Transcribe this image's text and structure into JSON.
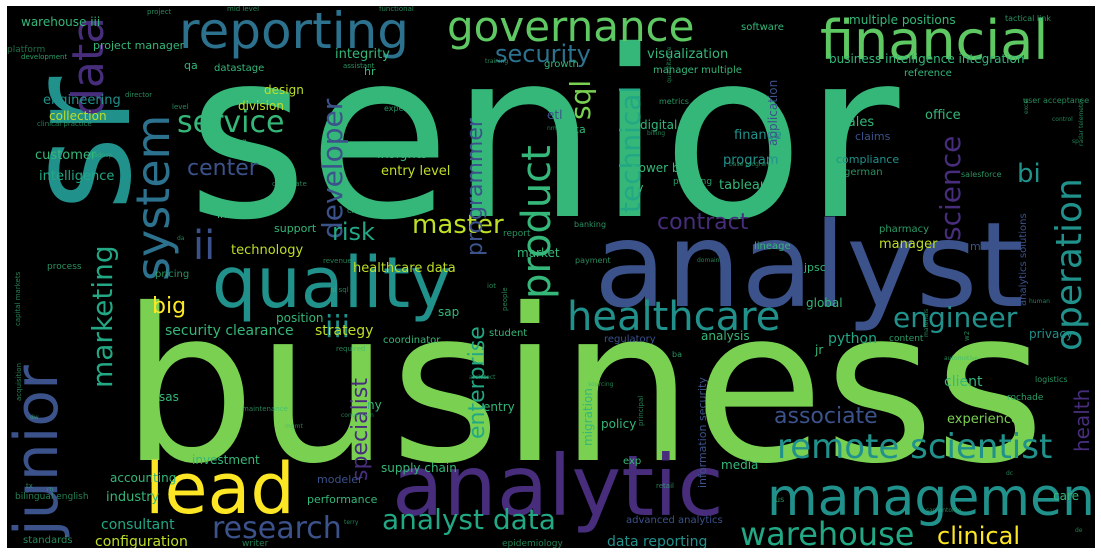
{
  "cloud": {
    "background": "#000000",
    "palette": {
      "green": "#7ad151",
      "green2": "#5ec962",
      "teal": "#35b779",
      "cyan": "#21918c",
      "blue": "#2c728e",
      "indigo": "#3b528b",
      "purple": "#472d7b",
      "violet": "#440154",
      "yellow": "#fde725",
      "lime": "#bddf26",
      "mint": "#22a884"
    },
    "words": [
      {
        "text": "senior",
        "color": "teal"
      },
      {
        "text": "business",
        "color": "green"
      },
      {
        "text": "analyst",
        "color": "indigo"
      },
      {
        "text": "sr",
        "color": "cyan"
      },
      {
        "text": "analytic",
        "color": "purple"
      },
      {
        "text": "quality",
        "color": "cyan"
      },
      {
        "text": "management",
        "color": "cyan"
      },
      {
        "text": "junior",
        "color": "indigo"
      },
      {
        "text": "lead",
        "color": "yellow"
      },
      {
        "text": "financial",
        "color": "green2"
      },
      {
        "text": "reporting",
        "color": "blue"
      },
      {
        "text": "governance",
        "color": "green2"
      },
      {
        "text": "data",
        "color": "purple"
      },
      {
        "text": "system",
        "color": "blue"
      },
      {
        "text": "product",
        "color": "teal"
      },
      {
        "text": "healthcare",
        "color": "cyan"
      },
      {
        "text": "operation",
        "color": "cyan"
      },
      {
        "text": "remote scientist",
        "color": "cyan"
      },
      {
        "text": "warehouse",
        "color": "mint"
      },
      {
        "text": "research",
        "color": "indigo"
      },
      {
        "text": "analyst data",
        "color": "mint"
      },
      {
        "text": "clinical",
        "color": "yellow"
      },
      {
        "text": "engineer",
        "color": "cyan"
      },
      {
        "text": "marketing",
        "color": "mint"
      },
      {
        "text": "service",
        "color": "teal"
      },
      {
        "text": "security",
        "color": "blue"
      },
      {
        "text": "science",
        "color": "purple"
      },
      {
        "text": "developer",
        "color": "indigo"
      },
      {
        "text": "technical",
        "color": "mint"
      },
      {
        "text": "master",
        "color": "lime"
      },
      {
        "text": "sql",
        "color": "green"
      },
      {
        "text": "bi",
        "color": "cyan"
      },
      {
        "text": "ii",
        "color": "indigo"
      },
      {
        "text": "iii",
        "color": "cyan"
      },
      {
        "text": "risk",
        "color": "mint"
      },
      {
        "text": "big",
        "color": "yellow"
      },
      {
        "text": "programmer",
        "color": "indigo"
      },
      {
        "text": "associate",
        "color": "indigo"
      },
      {
        "text": "enterprise",
        "color": "mint"
      },
      {
        "text": "specialist",
        "color": "purple"
      },
      {
        "text": "contract",
        "color": "purple"
      },
      {
        "text": "center",
        "color": "indigo"
      },
      {
        "text": "health",
        "color": "purple"
      },
      {
        "text": "configuration",
        "color": "lime"
      },
      {
        "text": "consultant",
        "color": "mint"
      },
      {
        "text": "supply chain",
        "color": "teal"
      },
      {
        "text": "data reporting",
        "color": "cyan"
      },
      {
        "text": "experience",
        "color": "green"
      },
      {
        "text": "client",
        "color": "teal"
      },
      {
        "text": "python",
        "color": "mint"
      },
      {
        "text": "security clearance",
        "color": "teal"
      },
      {
        "text": "strategy",
        "color": "lime"
      },
      {
        "text": "healthcare data",
        "color": "lime"
      },
      {
        "text": "technology",
        "color": "lime"
      },
      {
        "text": "manager",
        "color": "lime"
      },
      {
        "text": "intelligence",
        "color": "mint"
      },
      {
        "text": "customer",
        "color": "teal"
      },
      {
        "text": "insights",
        "color": "teal"
      },
      {
        "text": "entry level",
        "color": "lime"
      },
      {
        "text": "program",
        "color": "cyan"
      },
      {
        "text": "tableau",
        "color": "teal"
      },
      {
        "text": "finance",
        "color": "cyan"
      },
      {
        "text": "sales",
        "color": "teal"
      },
      {
        "text": "office",
        "color": "teal"
      },
      {
        "text": "compliance",
        "color": "cyan"
      },
      {
        "text": "global",
        "color": "teal"
      },
      {
        "text": "privacy",
        "color": "cyan"
      },
      {
        "text": "division",
        "color": "lime"
      },
      {
        "text": "integrity",
        "color": "teal"
      },
      {
        "text": "visualization",
        "color": "teal"
      },
      {
        "text": "business intelligence integration",
        "color": "teal"
      },
      {
        "text": "multiple positions",
        "color": "teal"
      },
      {
        "text": "warehouse iii",
        "color": "teal"
      },
      {
        "text": "project manager",
        "color": "teal"
      },
      {
        "text": "engineering",
        "color": "cyan"
      },
      {
        "text": "collection",
        "color": "lime"
      },
      {
        "text": "design",
        "color": "lime"
      },
      {
        "text": "digital",
        "color": "teal"
      },
      {
        "text": "investment",
        "color": "teal"
      },
      {
        "text": "accounting",
        "color": "teal"
      },
      {
        "text": "industry",
        "color": "teal"
      },
      {
        "text": "performance",
        "color": "teal"
      },
      {
        "text": "modeler",
        "color": "indigo"
      },
      {
        "text": "media",
        "color": "teal"
      },
      {
        "text": "policy",
        "color": "teal"
      },
      {
        "text": "analysis",
        "color": "teal"
      },
      {
        "text": "jr",
        "color": "teal"
      },
      {
        "text": "power bi",
        "color": "teal"
      },
      {
        "text": "support",
        "color": "teal"
      },
      {
        "text": "intern",
        "color": "teal"
      },
      {
        "text": "market",
        "color": "teal"
      },
      {
        "text": "position",
        "color": "teal"
      },
      {
        "text": "sap",
        "color": "teal"
      },
      {
        "text": "sas",
        "color": "teal"
      },
      {
        "text": "ny",
        "color": "teal"
      },
      {
        "text": "entry",
        "color": "teal"
      },
      {
        "text": "exp",
        "color": "teal"
      },
      {
        "text": "application",
        "color": "indigo"
      },
      {
        "text": "analytics solutions",
        "color": "indigo"
      },
      {
        "text": "claims",
        "color": "indigo"
      },
      {
        "text": "mdm",
        "color": "indigo"
      },
      {
        "text": "jpsc",
        "color": "teal"
      },
      {
        "text": "advanced analytics",
        "color": "indigo"
      },
      {
        "text": "care",
        "color": "teal"
      },
      {
        "text": "migration",
        "color": "teal"
      },
      {
        "text": "information security",
        "color": "indigo"
      },
      {
        "text": "etl",
        "color": "indigo"
      },
      {
        "text": "iv",
        "color": "teal"
      },
      {
        "text": "ca",
        "color": "teal"
      },
      {
        "text": "qa",
        "color": "teal"
      },
      {
        "text": "hr",
        "color": "teal"
      },
      {
        "text": "reference",
        "color": "teal"
      },
      {
        "text": "software",
        "color": "teal"
      },
      {
        "text": "growth",
        "color": "teal"
      },
      {
        "text": "standards",
        "color": "teal"
      },
      {
        "text": "epidemiology",
        "color": "teal"
      },
      {
        "text": "writer",
        "color": "teal"
      },
      {
        "text": "regulatory",
        "color": "indigo"
      },
      {
        "text": "coordinator",
        "color": "teal"
      },
      {
        "text": "student",
        "color": "teal"
      },
      {
        "text": "lineage",
        "color": "teal"
      },
      {
        "text": "pharmacy",
        "color": "teal"
      },
      {
        "text": "planning",
        "color": "teal"
      },
      {
        "text": "german",
        "color": "teal"
      },
      {
        "text": "salesforce",
        "color": "teal"
      },
      {
        "text": "banking",
        "color": "teal"
      },
      {
        "text": "pricing",
        "color": "teal"
      },
      {
        "text": "process",
        "color": "teal"
      },
      {
        "text": "cloud",
        "color": "teal"
      },
      {
        "text": "report",
        "color": "teal"
      },
      {
        "text": "payment",
        "color": "teal"
      },
      {
        "text": "metrics",
        "color": "teal"
      },
      {
        "text": "expert",
        "color": "teal"
      },
      {
        "text": "profiling",
        "color": "teal"
      },
      {
        "text": "candidate",
        "color": "teal"
      },
      {
        "text": "revenue",
        "color": "teal"
      },
      {
        "text": "maintenance",
        "color": "teal"
      },
      {
        "text": "logistics",
        "color": "teal"
      },
      {
        "text": "user acceptance",
        "color": "teal"
      },
      {
        "text": "rochade",
        "color": "teal"
      },
      {
        "text": "content",
        "color": "teal"
      },
      {
        "text": "datastage",
        "color": "teal"
      },
      {
        "text": "assistant",
        "color": "teal"
      },
      {
        "text": "training",
        "color": "teal"
      },
      {
        "text": "director",
        "color": "teal"
      },
      {
        "text": "level",
        "color": "teal"
      },
      {
        "text": "development",
        "color": "teal"
      },
      {
        "text": "platform",
        "color": "teal"
      },
      {
        "text": "project",
        "color": "teal"
      },
      {
        "text": "mid level",
        "color": "teal"
      },
      {
        "text": "functional",
        "color": "teal"
      },
      {
        "text": "tactical link",
        "color": "teal"
      },
      {
        "text": "bilingual english",
        "color": "teal"
      },
      {
        "text": "acquisition",
        "color": "teal"
      },
      {
        "text": "capital markets",
        "color": "teal"
      },
      {
        "text": "clinical practice",
        "color": "teal"
      },
      {
        "text": "manager multiple",
        "color": "teal"
      },
      {
        "text": "conversion",
        "color": "teal"
      },
      {
        "text": "architect",
        "color": "teal"
      },
      {
        "text": "principal",
        "color": "teal"
      },
      {
        "text": "automotive",
        "color": "teal"
      },
      {
        "text": "human",
        "color": "teal"
      },
      {
        "text": "radar telemetry",
        "color": "teal"
      },
      {
        "text": "excel",
        "color": "teal"
      },
      {
        "text": "retail",
        "color": "teal"
      },
      {
        "text": "base programmer",
        "color": "teal"
      },
      {
        "text": "billing",
        "color": "teal"
      },
      {
        "text": "domain",
        "color": "teal"
      },
      {
        "text": "people",
        "color": "teal"
      },
      {
        "text": "san antonio",
        "color": "teal"
      },
      {
        "text": "quantitative",
        "color": "teal"
      },
      {
        "text": "required",
        "color": "teal"
      },
      {
        "text": "sourcing",
        "color": "teal"
      },
      {
        "text": "ba",
        "color": "teal"
      },
      {
        "text": "us",
        "color": "teal"
      },
      {
        "text": "materials",
        "color": "teal"
      },
      {
        "text": "control",
        "color": "teal"
      },
      {
        "text": "hadoop",
        "color": "teal"
      },
      {
        "text": "pl sql",
        "color": "teal"
      },
      {
        "text": "iot",
        "color": "teal"
      },
      {
        "text": "mgmt",
        "color": "teal"
      },
      {
        "text": "terry",
        "color": "teal"
      },
      {
        "text": "nm",
        "color": "teal"
      },
      {
        "text": "mk",
        "color": "teal"
      },
      {
        "text": "rn",
        "color": "teal"
      },
      {
        "text": "dw",
        "color": "teal"
      },
      {
        "text": "sp",
        "color": "teal"
      },
      {
        "text": "da",
        "color": "teal"
      },
      {
        "text": "tx",
        "color": "teal"
      },
      {
        "text": "dc",
        "color": "teal"
      },
      {
        "text": "w2",
        "color": "teal"
      },
      {
        "text": "de",
        "color": "teal"
      }
    ]
  }
}
